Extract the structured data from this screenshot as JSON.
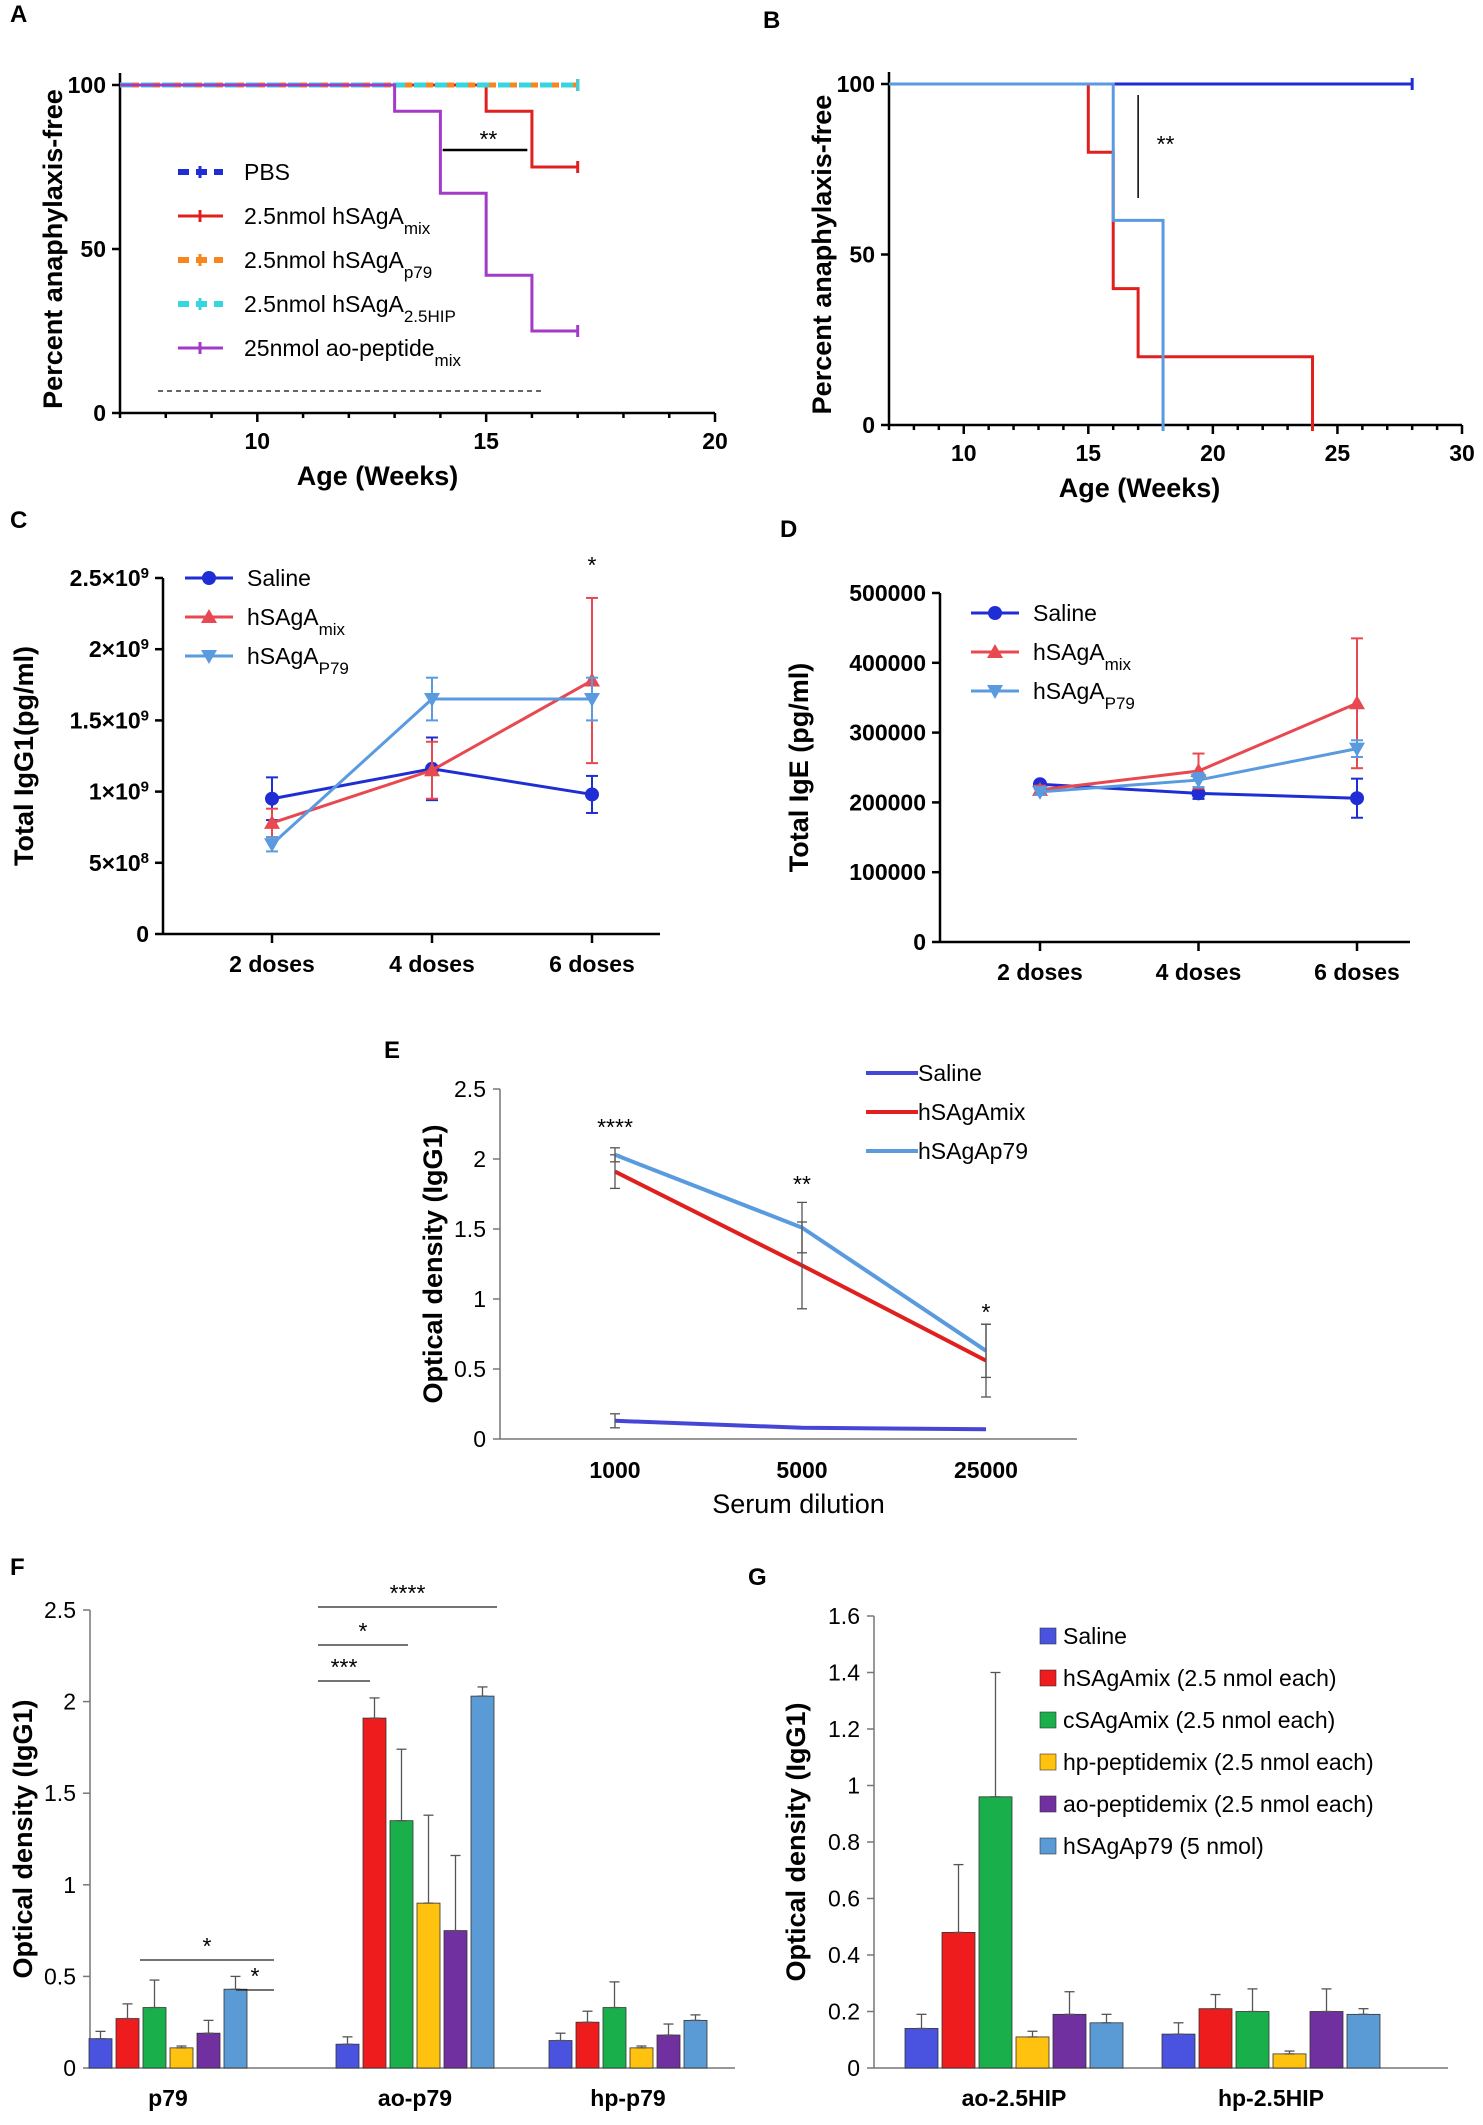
{
  "chart_data": [
    {
      "panel": "A",
      "type": "line",
      "subtype": "kaplan-meier",
      "xlabel": "Age (Weeks)",
      "ylabel": "Percent anaphylaxis-free",
      "xlim": [
        7,
        20
      ],
      "ylim": [
        0,
        100
      ],
      "xticks": [
        10,
        15,
        20
      ],
      "yticks": [
        0,
        50,
        100
      ],
      "series": [
        {
          "name": "PBS",
          "sub": "",
          "color": "#1f2ed4",
          "dash": true,
          "steps": [
            [
              7,
              100
            ],
            [
              17,
              100
            ]
          ]
        },
        {
          "name": "2.5nmol hSAgA",
          "sub": "mix",
          "color": "#e0201f",
          "dash": false,
          "steps": [
            [
              7,
              100
            ],
            [
              15,
              100
            ],
            [
              15,
              92
            ],
            [
              16,
              92
            ],
            [
              16,
              75
            ],
            [
              17,
              75
            ]
          ]
        },
        {
          "name": "2.5nmol hSAgA",
          "sub": "p79",
          "color": "#f7861e",
          "dash": true,
          "steps": [
            [
              7,
              100
            ],
            [
              17,
              100
            ]
          ]
        },
        {
          "name": "2.5nmol hSAgA",
          "sub": "2.5HIP",
          "color": "#35d6e0",
          "dash": true,
          "steps": [
            [
              7,
              100
            ],
            [
              17,
              100
            ]
          ]
        },
        {
          "name": "25nmol ao-peptide",
          "sub": "mix",
          "color": "#a43ac8",
          "dash": false,
          "steps": [
            [
              7,
              100
            ],
            [
              13,
              100
            ],
            [
              13,
              92
            ],
            [
              14,
              92
            ],
            [
              14,
              67
            ],
            [
              15,
              67
            ],
            [
              15,
              42
            ],
            [
              16,
              42
            ],
            [
              16,
              25
            ],
            [
              17,
              25
            ]
          ]
        }
      ],
      "annotations": [
        {
          "text": "**",
          "color": "#8b2fb0"
        }
      ]
    },
    {
      "panel": "B",
      "type": "line",
      "subtype": "kaplan-meier",
      "xlabel": "Age (Weeks)",
      "ylabel": "Percent anaphylaxis-free",
      "xlim": [
        7,
        30
      ],
      "ylim": [
        0,
        100
      ],
      "xticks": [
        10,
        15,
        20,
        25,
        30
      ],
      "yticks": [
        0,
        50,
        100
      ],
      "series": [
        {
          "name": "Saline",
          "color": "#1f2ed4",
          "steps": [
            [
              7,
              100
            ],
            [
              28,
              100
            ]
          ]
        },
        {
          "name": "hSAgAmix",
          "color": "#e0201f",
          "steps": [
            [
              7,
              100
            ],
            [
              15,
              100
            ],
            [
              15,
              80
            ],
            [
              16,
              80
            ],
            [
              16,
              40
            ],
            [
              17,
              40
            ],
            [
              17,
              20
            ],
            [
              24,
              20
            ],
            [
              24,
              0
            ]
          ]
        },
        {
          "name": "hSAgAp79",
          "color": "#5a9be0",
          "steps": [
            [
              7,
              100
            ],
            [
              16,
              100
            ],
            [
              16,
              60
            ],
            [
              18,
              60
            ],
            [
              18,
              0
            ]
          ]
        }
      ],
      "annotations": [
        {
          "text": "**",
          "color": "#1f2ed4"
        }
      ]
    },
    {
      "panel": "C",
      "type": "line",
      "ylabel": "Total IgG1(pg/ml)",
      "categories": [
        "2 doses",
        "4 doses",
        "6 doses"
      ],
      "ylim": [
        0,
        2500000000
      ],
      "yticks": [
        0,
        500000000,
        1000000000,
        1500000000,
        2000000000,
        2500000000
      ],
      "ytick_labels": [
        {
          "base": "0",
          "exp": ""
        },
        {
          "base": "5×10",
          "exp": "8"
        },
        {
          "base": "1×10",
          "exp": "9"
        },
        {
          "base": "1.5×10",
          "exp": "9"
        },
        {
          "base": "2×10",
          "exp": "9"
        },
        {
          "base": "2.5×10",
          "exp": "9"
        }
      ],
      "series": [
        {
          "name": "Saline",
          "sub": "",
          "color": "#1f2ed4",
          "marker": "circle",
          "values": [
            950000000,
            1160000000,
            980000000
          ],
          "err": [
            150000000,
            220000000,
            130000000
          ]
        },
        {
          "name": "hSAgA",
          "sub": "mix",
          "color": "#e8484f",
          "marker": "triangle-up",
          "values": [
            780000000,
            1150000000,
            1780000000
          ],
          "err": [
            100000000,
            200000000,
            580000000
          ]
        },
        {
          "name": "hSAgA",
          "sub": "P79",
          "color": "#5a9be0",
          "marker": "triangle-down",
          "values": [
            630000000,
            1650000000,
            1650000000
          ],
          "err": [
            50000000,
            150000000,
            150000000
          ]
        }
      ],
      "annotations": [
        {
          "text": "*",
          "color": "#1f2ed4"
        }
      ]
    },
    {
      "panel": "D",
      "type": "line",
      "ylabel": "Total IgE (pg/ml)",
      "categories": [
        "2 doses",
        "4 doses",
        "6 doses"
      ],
      "ylim": [
        0,
        500000
      ],
      "yticks": [
        0,
        100000,
        200000,
        300000,
        400000,
        500000
      ],
      "ytick_labels": [
        "0",
        "100000",
        "200000",
        "300000",
        "400000",
        "500000"
      ],
      "series": [
        {
          "name": "Saline",
          "sub": "",
          "color": "#1f2ed4",
          "marker": "circle",
          "values": [
            226000,
            213000,
            206000
          ],
          "err": [
            4000,
            8000,
            28000
          ]
        },
        {
          "name": "hSAgA",
          "sub": "mix",
          "color": "#e8484f",
          "marker": "triangle-up",
          "values": [
            218000,
            245000,
            342000
          ],
          "err": [
            6000,
            25000,
            93000
          ]
        },
        {
          "name": "hSAgA",
          "sub": "P79",
          "color": "#5a9be0",
          "marker": "triangle-down",
          "values": [
            215000,
            232000,
            277000
          ],
          "err": [
            4000,
            10000,
            12000
          ]
        }
      ]
    },
    {
      "panel": "E",
      "type": "line",
      "xlabel": "Serum dilution",
      "ylabel": "Optical density (IgG1)",
      "categories": [
        "1000",
        "5000",
        "25000"
      ],
      "ylim": [
        0,
        2.5
      ],
      "yticks": [
        0,
        0.5,
        1,
        1.5,
        2,
        2.5
      ],
      "ytick_labels": [
        "0",
        "0.5",
        "1",
        "1.5",
        "2",
        "2.5"
      ],
      "series": [
        {
          "name": "Saline",
          "color": "#4646d6",
          "values": [
            0.13,
            0.08,
            0.07
          ],
          "err": [
            0.05,
            0,
            0
          ]
        },
        {
          "name": "hSAgAmix",
          "color": "#e0201f",
          "values": [
            1.91,
            1.24,
            0.56
          ],
          "err": [
            0.12,
            0.31,
            0.26
          ]
        },
        {
          "name": "hSAgAp79",
          "color": "#5a9be0",
          "values": [
            2.03,
            1.51,
            0.63
          ],
          "err": [
            0.05,
            0.18,
            0.19
          ]
        }
      ],
      "annotations": [
        {
          "text": "****",
          "color": "#1f2ed4"
        },
        {
          "text": "**",
          "color": "#1f2ed4"
        },
        {
          "text": "*",
          "color": "#1f2ed4"
        }
      ]
    },
    {
      "panel": "F",
      "type": "bar",
      "ylabel": "Optical density (IgG1)",
      "categories": [
        "p79",
        "ao-p79",
        "hp-p79"
      ],
      "ylim": [
        0,
        2.5
      ],
      "yticks": [
        0,
        0.5,
        1,
        1.5,
        2,
        2.5
      ],
      "ytick_labels": [
        "0",
        "0.5",
        "1",
        "1.5",
        "2",
        "2.5"
      ],
      "series": [
        {
          "name": "Saline",
          "color": "#4a53e0",
          "values": [
            0.16,
            0.13,
            0.15
          ],
          "err": [
            0.04,
            0.04,
            0.04
          ]
        },
        {
          "name": "hSAgAmix (2.5 nmol each)",
          "color": "#ee1c1c",
          "values": [
            0.27,
            1.91,
            0.25
          ],
          "err": [
            0.08,
            0.11,
            0.06
          ]
        },
        {
          "name": "cSAgAmix (2.5 nmol each)",
          "color": "#19b04c",
          "values": [
            0.33,
            1.35,
            0.33
          ],
          "err": [
            0.15,
            0.39,
            0.14
          ]
        },
        {
          "name": "hp-peptidemix (2.5 nmol each)",
          "color": "#ffc20e",
          "values": [
            0.11,
            0.9,
            0.11
          ],
          "err": [
            0.01,
            0.48,
            0.01
          ]
        },
        {
          "name": "ao-peptidemix (2.5 nmol each)",
          "color": "#7030a0",
          "values": [
            0.19,
            0.75,
            0.18
          ],
          "err": [
            0.07,
            0.41,
            0.06
          ]
        },
        {
          "name": "hSAgAp79 (5 nmol)",
          "color": "#5b9bd5",
          "values": [
            0.43,
            2.03,
            0.26
          ],
          "err": [
            0.07,
            0.05,
            0.03
          ]
        }
      ],
      "annotations": [
        {
          "text": "*",
          "color": "#1f2ed4"
        },
        {
          "text": "*",
          "color": "#8b2fb0"
        },
        {
          "text": "****",
          "color": "#1f2ed4"
        },
        {
          "text": "*",
          "color": "#1f2ed4"
        },
        {
          "text": "***",
          "color": "#1f2ed4"
        }
      ]
    },
    {
      "panel": "G",
      "type": "bar",
      "ylabel": "Optical density (IgG1)",
      "categories": [
        "ao-2.5HIP",
        "hp-2.5HIP"
      ],
      "ylim": [
        0,
        1.6
      ],
      "yticks": [
        0,
        0.2,
        0.4,
        0.6,
        0.8,
        1,
        1.2,
        1.4,
        1.6
      ],
      "ytick_labels": [
        "0",
        "0.2",
        "0.4",
        "0.6",
        "0.8",
        "1",
        "1.2",
        "1.4",
        "1.6"
      ],
      "series": [
        {
          "name": "Saline",
          "color": "#4a53e0",
          "values": [
            0.14,
            0.12
          ],
          "err": [
            0.05,
            0.04
          ]
        },
        {
          "name": "hSAgAmix (2.5 nmol each)",
          "color": "#ee1c1c",
          "values": [
            0.48,
            0.21
          ],
          "err": [
            0.24,
            0.05
          ]
        },
        {
          "name": "cSAgAmix (2.5 nmol each)",
          "color": "#19b04c",
          "values": [
            0.96,
            0.2
          ],
          "err": [
            0.44,
            0.08
          ]
        },
        {
          "name": "hp-peptidemix (2.5 nmol each)",
          "color": "#ffc20e",
          "values": [
            0.11,
            0.05
          ],
          "err": [
            0.02,
            0.01
          ]
        },
        {
          "name": "ao-peptidemix (2.5 nmol each)",
          "color": "#7030a0",
          "values": [
            0.19,
            0.2
          ],
          "err": [
            0.08,
            0.08
          ]
        },
        {
          "name": "hSAgAp79 (5 nmol)",
          "color": "#5b9bd5",
          "values": [
            0.16,
            0.19
          ],
          "err": [
            0.03,
            0.02
          ]
        }
      ]
    }
  ]
}
